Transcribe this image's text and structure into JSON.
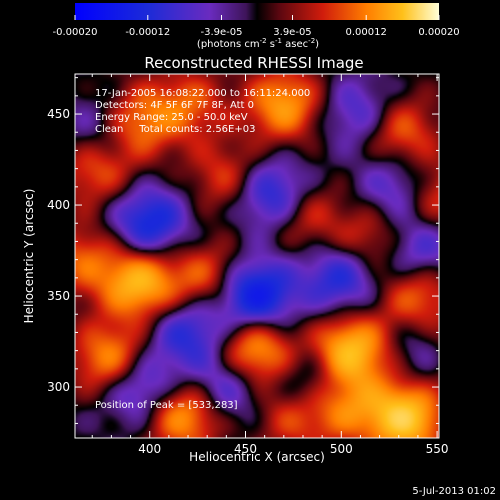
{
  "chart_data": {
    "type": "heatmap",
    "title": "Reconstructed RHESSI Image",
    "xlabel": "Heliocentric X (arcsec)",
    "ylabel": "Heliocentric Y (arcsec)",
    "xlim": [
      361,
      551
    ],
    "ylim": [
      272,
      472
    ],
    "x_ticks": [
      400,
      450,
      500,
      550
    ],
    "y_ticks": [
      300,
      350,
      400,
      450
    ],
    "colorbar": {
      "range": [
        -0.0002,
        0.0002
      ],
      "tick_values": [
        -0.0002,
        -0.00012,
        -3.9e-05,
        3.9e-05,
        0.00012,
        0.0002
      ],
      "tick_labels": [
        "-0.00020",
        "-0.00012",
        "-3.9e-05",
        "3.9e-05",
        "0.00012",
        "0.00020"
      ],
      "unit_label": "(photons cm",
      "unit_sup1": "-2",
      "unit_mid": " s",
      "unit_sup2": "-1",
      "unit_mid2": " asec",
      "unit_sup3": "-2",
      "unit_end": ")"
    },
    "annotations": [
      "17-Jan-2005 16:08:22.000 to 16:11:24.000",
      "Detectors: 4F 5F 6F 7F 8F, Att 0",
      "Energy Range: 25.0 - 50.0 keV",
      "Clean     Total counts: 2.56E+03"
    ],
    "peak_label": "Position of Peak = [533,283]",
    "peak": [
      533,
      283
    ],
    "sources": [
      {
        "x": 533,
        "y": 283,
        "v": 1.0
      },
      {
        "x": 395,
        "y": 357,
        "v": 0.85
      },
      {
        "x": 505,
        "y": 320,
        "v": 0.9
      },
      {
        "x": 455,
        "y": 320,
        "v": 0.8
      },
      {
        "x": 380,
        "y": 315,
        "v": 0.7
      },
      {
        "x": 418,
        "y": 285,
        "v": 0.75
      },
      {
        "x": 470,
        "y": 455,
        "v": 0.7
      },
      {
        "x": 393,
        "y": 445,
        "v": 0.6
      },
      {
        "x": 530,
        "y": 440,
        "v": 0.55
      },
      {
        "x": 540,
        "y": 350,
        "v": 0.55
      },
      {
        "x": 515,
        "y": 380,
        "v": 0.45
      },
      {
        "x": 372,
        "y": 420,
        "v": 0.5
      },
      {
        "x": 500,
        "y": 290,
        "v": 0.6
      },
      {
        "x": 430,
        "y": 360,
        "v": 0.5
      },
      {
        "x": 480,
        "y": 395,
        "v": 0.45
      },
      {
        "x": 548,
        "y": 405,
        "v": 0.5
      },
      {
        "x": 365,
        "y": 370,
        "v": 0.45
      },
      {
        "x": 440,
        "y": 415,
        "v": 0.4
      },
      {
        "x": 475,
        "y": 285,
        "v": 0.45
      },
      {
        "x": 420,
        "y": 455,
        "v": 0.45
      },
      {
        "x": 560,
        "y": 320,
        "v": 0.4
      },
      {
        "x": 400,
        "y": 390,
        "v": -0.7
      },
      {
        "x": 455,
        "y": 350,
        "v": -0.9
      },
      {
        "x": 500,
        "y": 360,
        "v": -0.6
      },
      {
        "x": 465,
        "y": 405,
        "v": -0.7
      },
      {
        "x": 530,
        "y": 410,
        "v": -0.5
      },
      {
        "x": 395,
        "y": 300,
        "v": -0.6
      },
      {
        "x": 485,
        "y": 300,
        "v": -0.5
      },
      {
        "x": 420,
        "y": 330,
        "v": -0.55
      },
      {
        "x": 375,
        "y": 440,
        "v": -0.4
      },
      {
        "x": 440,
        "y": 300,
        "v": -0.5
      },
      {
        "x": 545,
        "y": 320,
        "v": -0.4
      },
      {
        "x": 510,
        "y": 450,
        "v": -0.45
      },
      {
        "x": 540,
        "y": 375,
        "v": -0.5
      }
    ]
  },
  "footer": {
    "date": "5-Jul-2013 01:02"
  }
}
